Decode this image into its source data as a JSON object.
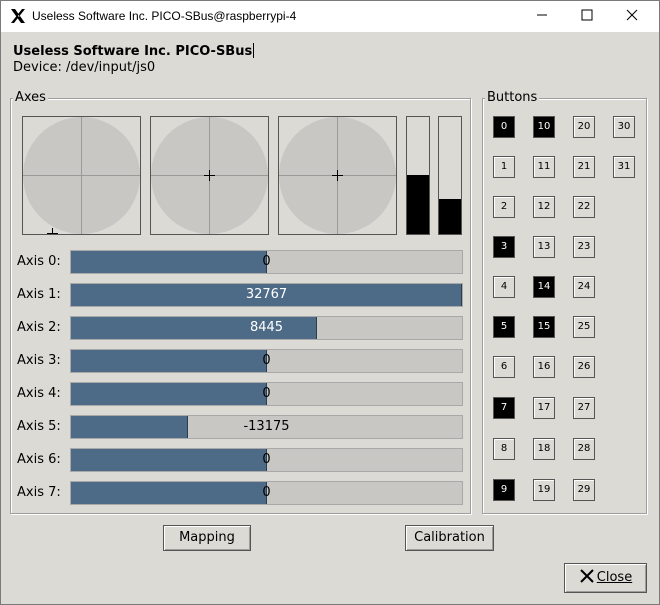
{
  "window": {
    "title": "Useless Software Inc. PICO-SBus@raspberrypi-4",
    "app_name": "Useless Software Inc. PICO-SBus",
    "device_label": "Device: /dev/input/js0"
  },
  "axes_frame": {
    "label": "Axes"
  },
  "buttons_frame": {
    "label": "Buttons"
  },
  "sticks": [
    {
      "name": "stick-1",
      "x_value": -0.5,
      "y_value": 1.0
    },
    {
      "name": "stick-2",
      "x_value": 0.0,
      "y_value": 0.0
    },
    {
      "name": "stick-3",
      "x_value": 0.0,
      "y_value": 0.0
    }
  ],
  "level_bars": [
    {
      "name": "level-bar-1",
      "level": 0.5
    },
    {
      "name": "level-bar-2",
      "level": 0.3
    }
  ],
  "axes": [
    {
      "label": "Axis 0:",
      "value": "0",
      "level": 0.5
    },
    {
      "label": "Axis 1:",
      "value": "32767",
      "level": 1.0
    },
    {
      "label": "Axis 2:",
      "value": "8445",
      "level": 0.629
    },
    {
      "label": "Axis 3:",
      "value": "0",
      "level": 0.5
    },
    {
      "label": "Axis 4:",
      "value": "0",
      "level": 0.5
    },
    {
      "label": "Axis 5:",
      "value": "-13175",
      "level": 0.299
    },
    {
      "label": "Axis 6:",
      "value": "0",
      "level": 0.5
    },
    {
      "label": "Axis 7:",
      "value": "0",
      "level": 0.5
    }
  ],
  "joystick_buttons": [
    {
      "label": "0",
      "pressed": true
    },
    {
      "label": "1",
      "pressed": false
    },
    {
      "label": "2",
      "pressed": false
    },
    {
      "label": "3",
      "pressed": true
    },
    {
      "label": "4",
      "pressed": false
    },
    {
      "label": "5",
      "pressed": true
    },
    {
      "label": "6",
      "pressed": false
    },
    {
      "label": "7",
      "pressed": true
    },
    {
      "label": "8",
      "pressed": false
    },
    {
      "label": "9",
      "pressed": true
    },
    {
      "label": "10",
      "pressed": true
    },
    {
      "label": "11",
      "pressed": false
    },
    {
      "label": "12",
      "pressed": false
    },
    {
      "label": "13",
      "pressed": false
    },
    {
      "label": "14",
      "pressed": true
    },
    {
      "label": "15",
      "pressed": true
    },
    {
      "label": "16",
      "pressed": false
    },
    {
      "label": "17",
      "pressed": false
    },
    {
      "label": "18",
      "pressed": false
    },
    {
      "label": "19",
      "pressed": false
    },
    {
      "label": "20",
      "pressed": false
    },
    {
      "label": "21",
      "pressed": false
    },
    {
      "label": "22",
      "pressed": false
    },
    {
      "label": "23",
      "pressed": false
    },
    {
      "label": "24",
      "pressed": false
    },
    {
      "label": "25",
      "pressed": false
    },
    {
      "label": "26",
      "pressed": false
    },
    {
      "label": "27",
      "pressed": false
    },
    {
      "label": "28",
      "pressed": false
    },
    {
      "label": "29",
      "pressed": false
    },
    {
      "label": "30",
      "pressed": false
    },
    {
      "label": "31",
      "pressed": false
    }
  ],
  "actions": {
    "mapping_label": "Mapping",
    "calibration_label": "Calibration",
    "close_label": "Close"
  },
  "icons": {
    "app": "x11-logo-icon",
    "minimize": "minimize-icon",
    "maximize": "maximize-icon",
    "close": "close-icon",
    "close_button": "close-x-icon"
  },
  "colors": {
    "progress_fill": "#4d6a87",
    "pressed_button": "#000000",
    "window_bg": "#dcdad5"
  }
}
